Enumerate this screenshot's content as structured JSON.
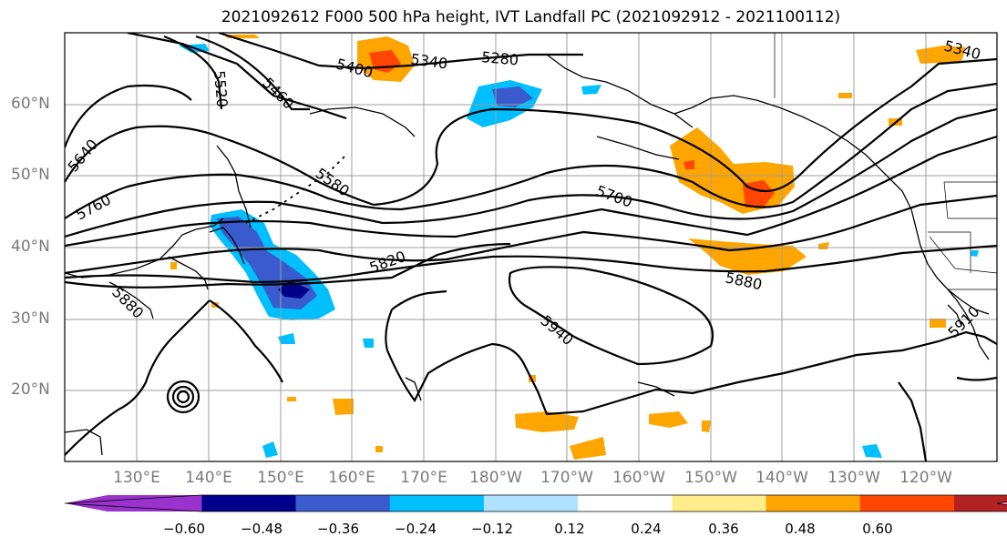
{
  "title": "2021092612 F000 500 hPa height, IVT Landfall PC (2021092912 - 2021100112)",
  "lat_labels": [
    "60°N",
    "50°N",
    "40°N",
    "30°N",
    "20°N"
  ],
  "lon_labels": [
    "130°E",
    "140°E",
    "150°E",
    "160°E",
    "170°E",
    "180°W",
    "170°W",
    "160°W",
    "150°W",
    "140°W",
    "130°W",
    "120°W"
  ],
  "contour_labels": [
    "5340",
    "5280",
    "5400",
    "5460",
    "5520",
    "5340",
    "5640",
    "5580",
    "5760",
    "5700",
    "5820",
    "5880",
    "5880",
    "5940",
    "5910"
  ],
  "colorbar": {
    "ticks": [
      "−0.60",
      "−0.48",
      "−0.36",
      "−0.24",
      "−0.12",
      "0.12",
      "0.24",
      "0.36",
      "0.48",
      "0.60"
    ],
    "colors": [
      "#9a32cd",
      "#00008b",
      "#3a5bcd",
      "#00bfff",
      "#b0e2ff",
      "#ffffff",
      "#ffec8b",
      "#ffa500",
      "#ff4500",
      "#b22222",
      "#ff82ab"
    ]
  },
  "colors": {
    "gridline": "#9e9e9e",
    "contour": "#000000",
    "axis_label": "#7a7a7a"
  }
}
